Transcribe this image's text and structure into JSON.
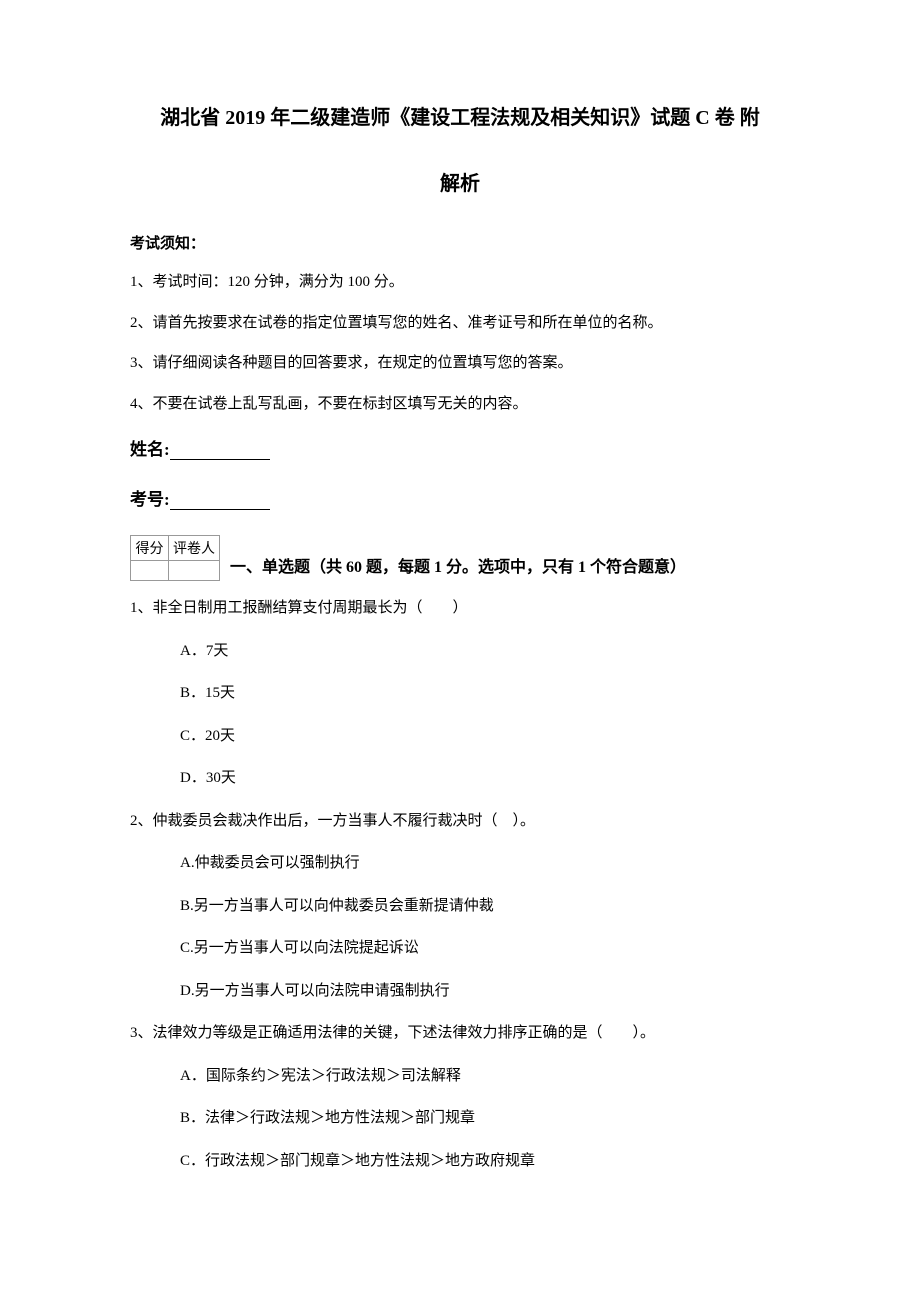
{
  "title_line1": "湖北省 2019 年二级建造师《建设工程法规及相关知识》试题 C 卷  附",
  "title_line2": "解析",
  "notice_header": "考试须知：",
  "notices": [
    "1、考试时间：120 分钟，满分为 100 分。",
    "2、请首先按要求在试卷的指定位置填写您的姓名、准考证号和所在单位的名称。",
    "3、请仔细阅读各种题目的回答要求，在规定的位置填写您的答案。",
    "4、不要在试卷上乱写乱画，不要在标封区填写无关的内容。"
  ],
  "name_label": "姓名:",
  "number_label": "考号:",
  "score_table": {
    "headers": [
      "得分",
      "评卷人"
    ]
  },
  "section_title": "一、单选题（共 60 题，每题 1 分。选项中，只有 1 个符合题意）",
  "questions": [
    {
      "text": "1、非全日制用工报酬结算支付周期最长为（　　）",
      "options": [
        "A．7天",
        "B．15天",
        "C．20天",
        "D．30天"
      ]
    },
    {
      "text": "2、仲裁委员会裁决作出后，一方当事人不履行裁决时（　）。",
      "options": [
        "A.仲裁委员会可以强制执行",
        "B.另一方当事人可以向仲裁委员会重新提请仲裁",
        "C.另一方当事人可以向法院提起诉讼",
        "D.另一方当事人可以向法院申请强制执行"
      ]
    },
    {
      "text": "3、法律效力等级是正确适用法律的关键，下述法律效力排序正确的是（　　）。",
      "options": [
        "A．国际条约＞宪法＞行政法规＞司法解释",
        "B．法律＞行政法规＞地方性法规＞部门规章",
        "C．行政法规＞部门规章＞地方性法规＞地方政府规章"
      ]
    }
  ]
}
